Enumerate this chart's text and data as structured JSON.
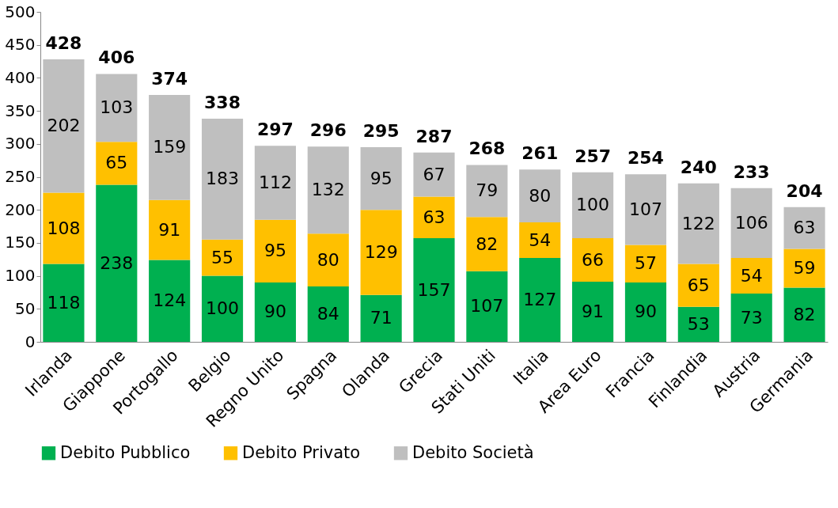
{
  "chart_data": {
    "type": "bar",
    "stacked": true,
    "categories": [
      "Irlanda",
      "Giappone",
      "Portogallo",
      "Belgio",
      "Regno Unito",
      "Spagna",
      "Olanda",
      "Grecia",
      "Stati Uniti",
      "Italia",
      "Area Euro",
      "Francia",
      "Finlandia",
      "Austria",
      "Germania"
    ],
    "series": [
      {
        "name": "Debito Pubblico",
        "color": "#00b050",
        "values": [
          118,
          238,
          124,
          100,
          90,
          84,
          71,
          157,
          107,
          127,
          91,
          90,
          53,
          73,
          82
        ]
      },
      {
        "name": "Debito Privato",
        "color": "#ffc000",
        "values": [
          108,
          65,
          91,
          55,
          95,
          80,
          129,
          63,
          82,
          54,
          66,
          57,
          65,
          54,
          59
        ]
      },
      {
        "name": "Debito Società",
        "color": "#bfbfbf",
        "values": [
          202,
          103,
          159,
          183,
          112,
          132,
          95,
          67,
          79,
          80,
          100,
          107,
          122,
          106,
          63
        ]
      }
    ],
    "totals": [
      "428",
      "406",
      "374",
      "338",
      "297",
      "296",
      "295",
      "287",
      "268",
      "261",
      "257",
      "254",
      "240",
      "233",
      "204"
    ],
    "data_labels": true,
    "ylim": [
      0,
      500
    ],
    "yticks": [
      0,
      50,
      100,
      150,
      200,
      250,
      300,
      350,
      400,
      450,
      500
    ],
    "grid": false,
    "legend": "bottom"
  }
}
